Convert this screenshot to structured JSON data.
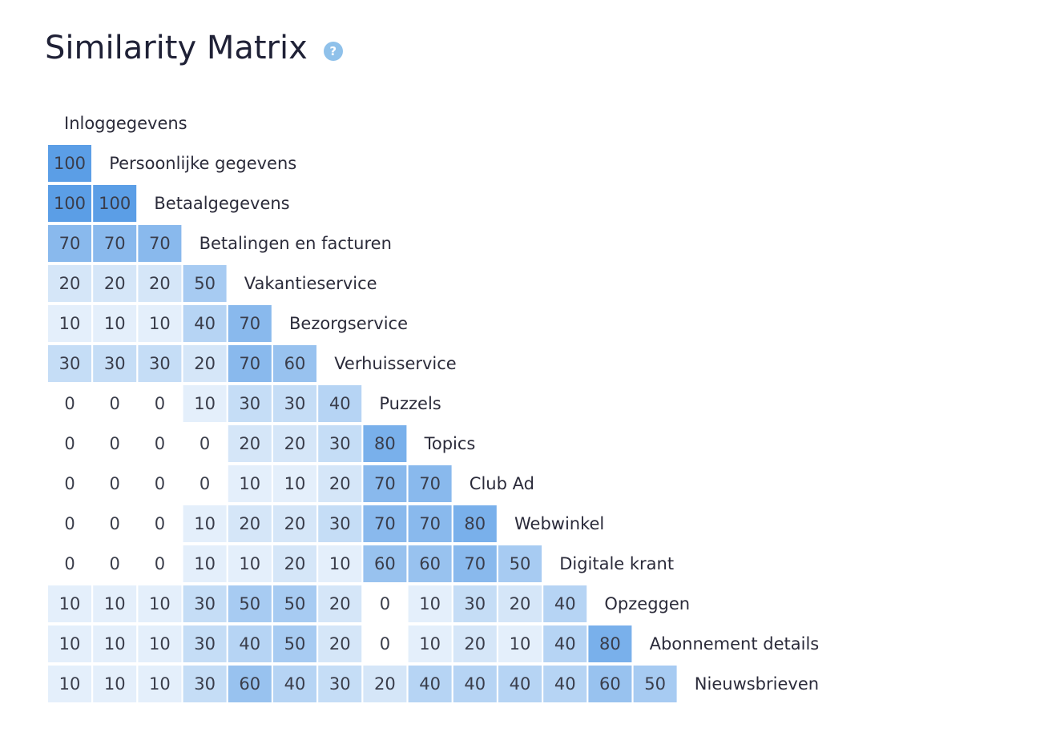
{
  "page": {
    "title": "Similarity Matrix",
    "help_icon": "question-circle-icon"
  },
  "colors": {
    "scale_low": "#f3f8fd",
    "scale_high": "#5b9ee6",
    "zero": "#ffffff",
    "help_icon": "#8fc1ea"
  },
  "chart_data": {
    "type": "heatmap",
    "title": "Similarity Matrix",
    "layout": "lower-triangle",
    "value_range": [
      0,
      100
    ],
    "labels": [
      "Inloggegevens",
      "Persoonlijke gegevens",
      "Betaalgegevens",
      "Betalingen en facturen",
      "Vakantieservice",
      "Bezorgservice",
      "Verhuisservice",
      "Puzzels",
      "Topics",
      "Club Ad",
      "Webwinkel",
      "Digitale krant",
      "Opzeggen",
      "Abonnement details",
      "Nieuwsbrieven"
    ],
    "values": [
      [],
      [
        100
      ],
      [
        100,
        100
      ],
      [
        70,
        70,
        70
      ],
      [
        20,
        20,
        20,
        50
      ],
      [
        10,
        10,
        10,
        40,
        70
      ],
      [
        30,
        30,
        30,
        20,
        70,
        60
      ],
      [
        0,
        0,
        0,
        10,
        30,
        30,
        40
      ],
      [
        0,
        0,
        0,
        0,
        20,
        20,
        30,
        80
      ],
      [
        0,
        0,
        0,
        0,
        10,
        10,
        20,
        70,
        70
      ],
      [
        0,
        0,
        0,
        10,
        20,
        20,
        30,
        70,
        70,
        80
      ],
      [
        0,
        0,
        0,
        10,
        10,
        20,
        10,
        60,
        60,
        70,
        50
      ],
      [
        10,
        10,
        10,
        30,
        50,
        50,
        20,
        0,
        10,
        30,
        20,
        40
      ],
      [
        10,
        10,
        10,
        30,
        40,
        50,
        20,
        0,
        10,
        20,
        10,
        40,
        80
      ],
      [
        10,
        10,
        10,
        30,
        60,
        40,
        30,
        20,
        40,
        40,
        40,
        40,
        60,
        50
      ]
    ]
  }
}
